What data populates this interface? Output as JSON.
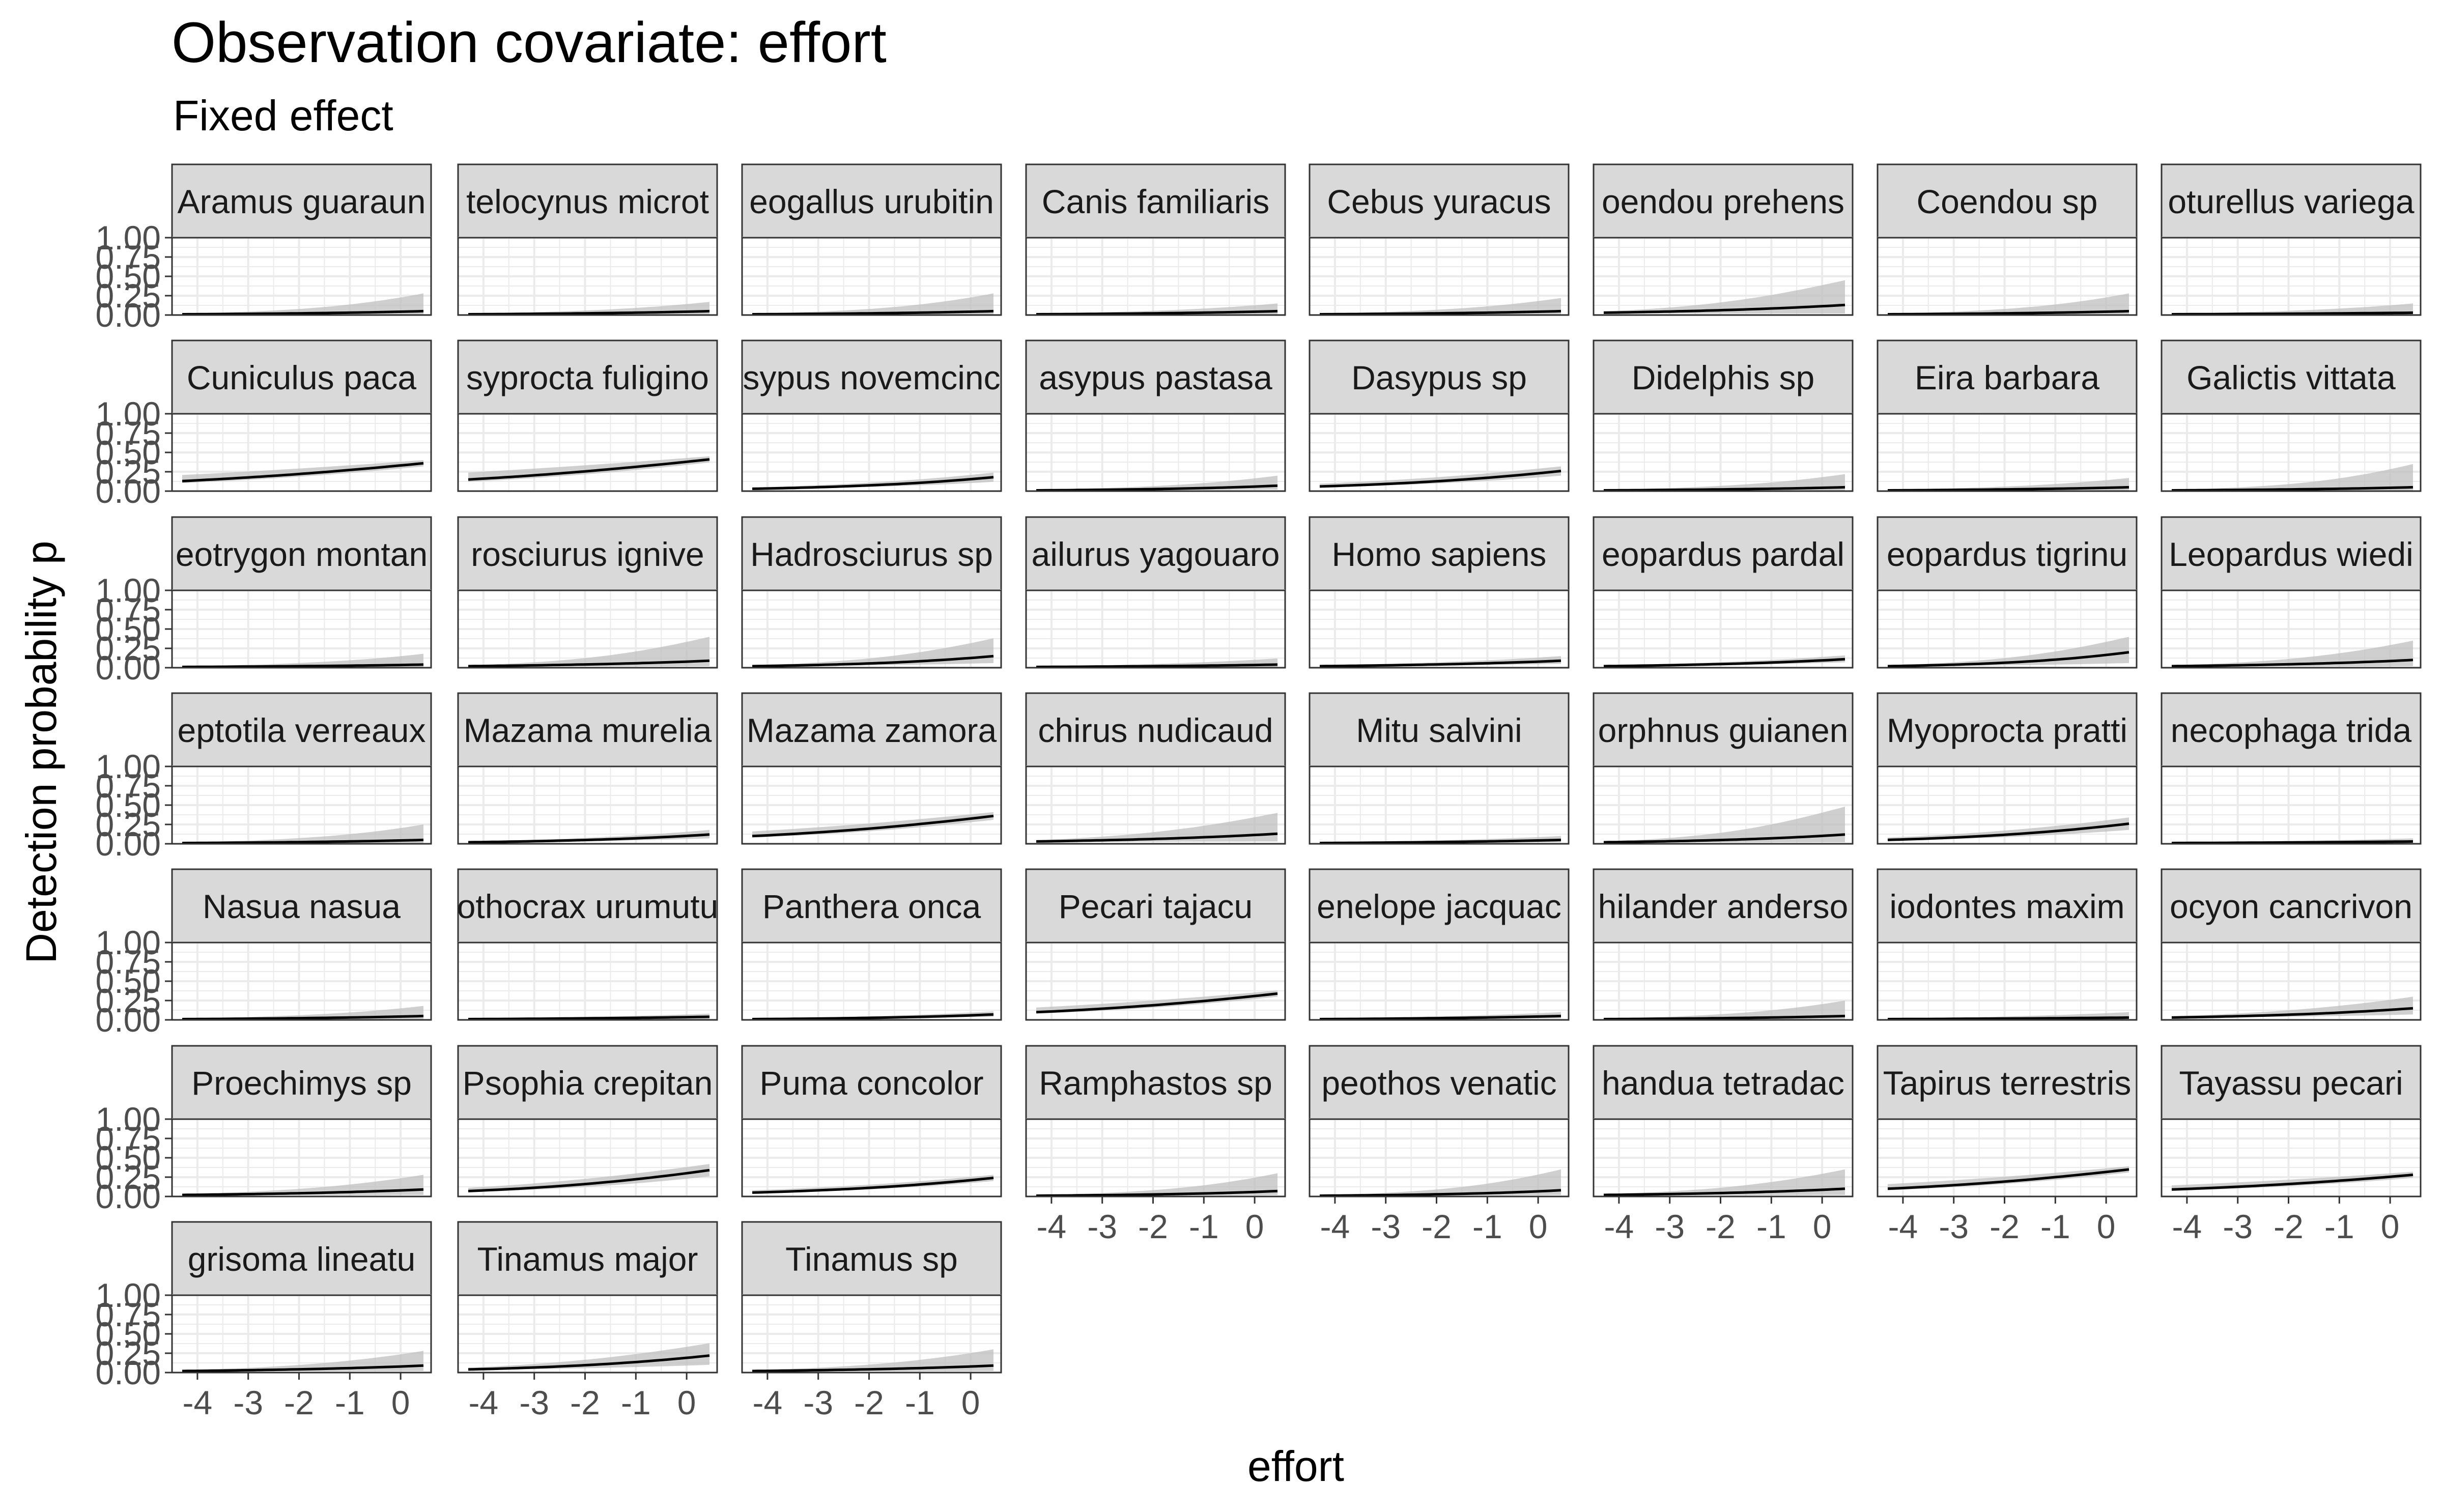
{
  "chart_data": {
    "type": "line",
    "title": "Observation covariate: effort",
    "subtitle": "Fixed effect",
    "xlabel": "effort",
    "ylabel": "Detection probability p",
    "xlim": [
      -4.5,
      0.6
    ],
    "ylim": [
      0,
      1
    ],
    "x_ticks": [
      -4,
      -3,
      -2,
      -1,
      0
    ],
    "x_tick_labels": [
      "-4",
      "-3",
      "-2",
      "-1",
      "0"
    ],
    "y_ticks": [
      0,
      0.25,
      0.5,
      0.75,
      1
    ],
    "y_tick_labels": [
      "0.00",
      "0.25",
      "0.50",
      "0.75",
      "1.00"
    ],
    "grid": true,
    "layout": "facet_wrap 8 columns",
    "x_range": [
      -4.3,
      0.45
    ],
    "colors": {
      "line": "#000000",
      "ribbon": "#bfbfbf",
      "strip_fill": "#d9d9d9",
      "grid": "#ebebeb",
      "panel_border": "#333333"
    },
    "facets": [
      {
        "label": "Aramus guaraun",
        "p_start": 0.01,
        "p_end": 0.05,
        "ci_low_end": 0.0,
        "ci_high_end": 0.28
      },
      {
        "label": "telocynus microt",
        "p_start": 0.01,
        "p_end": 0.05,
        "ci_low_end": 0.01,
        "ci_high_end": 0.17
      },
      {
        "label": "eogallus urubitin",
        "p_start": 0.01,
        "p_end": 0.05,
        "ci_low_end": 0.0,
        "ci_high_end": 0.28
      },
      {
        "label": "Canis familiaris",
        "p_start": 0.01,
        "p_end": 0.05,
        "ci_low_end": 0.01,
        "ci_high_end": 0.15
      },
      {
        "label": "Cebus yuracus",
        "p_start": 0.01,
        "p_end": 0.05,
        "ci_low_end": 0.01,
        "ci_high_end": 0.22
      },
      {
        "label": "oendou prehens",
        "p_start": 0.03,
        "p_end": 0.13,
        "ci_low_end": 0.02,
        "ci_high_end": 0.45
      },
      {
        "label": "Coendou sp",
        "p_start": 0.01,
        "p_end": 0.05,
        "ci_low_end": 0.0,
        "ci_high_end": 0.28
      },
      {
        "label": "oturellus variega",
        "p_start": 0.01,
        "p_end": 0.03,
        "ci_low_end": 0.0,
        "ci_high_end": 0.15
      },
      {
        "label": "Cuniculus paca",
        "p_start": 0.13,
        "p_end": 0.36,
        "ci_low_end": 0.32,
        "ci_high_end": 0.4
      },
      {
        "label": "syprocta fuligino",
        "p_start": 0.15,
        "p_end": 0.41,
        "ci_low_end": 0.37,
        "ci_high_end": 0.45
      },
      {
        "label": "sypus novemcinc",
        "p_start": 0.03,
        "p_end": 0.18,
        "ci_low_end": 0.12,
        "ci_high_end": 0.24
      },
      {
        "label": "asypus pastasa",
        "p_start": 0.01,
        "p_end": 0.07,
        "ci_low_end": 0.02,
        "ci_high_end": 0.2
      },
      {
        "label": "Dasypus sp",
        "p_start": 0.06,
        "p_end": 0.26,
        "ci_low_end": 0.2,
        "ci_high_end": 0.32
      },
      {
        "label": "Didelphis sp",
        "p_start": 0.01,
        "p_end": 0.05,
        "ci_low_end": 0.01,
        "ci_high_end": 0.22
      },
      {
        "label": "Eira barbara",
        "p_start": 0.01,
        "p_end": 0.05,
        "ci_low_end": 0.01,
        "ci_high_end": 0.17
      },
      {
        "label": "Galictis vittata",
        "p_start": 0.01,
        "p_end": 0.05,
        "ci_low_end": 0.0,
        "ci_high_end": 0.35
      },
      {
        "label": "eotrygon montan",
        "p_start": 0.01,
        "p_end": 0.04,
        "ci_low_end": 0.0,
        "ci_high_end": 0.18
      },
      {
        "label": "rosciurus ignive",
        "p_start": 0.02,
        "p_end": 0.09,
        "ci_low_end": 0.02,
        "ci_high_end": 0.4
      },
      {
        "label": "Hadrosciurus sp",
        "p_start": 0.02,
        "p_end": 0.15,
        "ci_low_end": 0.06,
        "ci_high_end": 0.38
      },
      {
        "label": "ailurus yagouaro",
        "p_start": 0.01,
        "p_end": 0.04,
        "ci_low_end": 0.01,
        "ci_high_end": 0.12
      },
      {
        "label": "Homo sapiens",
        "p_start": 0.02,
        "p_end": 0.09,
        "ci_low_end": 0.05,
        "ci_high_end": 0.15
      },
      {
        "label": "eopardus pardal",
        "p_start": 0.02,
        "p_end": 0.11,
        "ci_low_end": 0.07,
        "ci_high_end": 0.16
      },
      {
        "label": "eopardus tigrinu",
        "p_start": 0.02,
        "p_end": 0.2,
        "ci_low_end": 0.06,
        "ci_high_end": 0.4
      },
      {
        "label": "Leopardus wiedi",
        "p_start": 0.02,
        "p_end": 0.1,
        "ci_low_end": 0.02,
        "ci_high_end": 0.35
      },
      {
        "label": "eptotila verreaux",
        "p_start": 0.01,
        "p_end": 0.05,
        "ci_low_end": 0.0,
        "ci_high_end": 0.25
      },
      {
        "label": "Mazama murelia",
        "p_start": 0.02,
        "p_end": 0.12,
        "ci_low_end": 0.07,
        "ci_high_end": 0.18
      },
      {
        "label": "Mazama zamora",
        "p_start": 0.1,
        "p_end": 0.36,
        "ci_low_end": 0.31,
        "ci_high_end": 0.41
      },
      {
        "label": "chirus nudicaud",
        "p_start": 0.03,
        "p_end": 0.13,
        "ci_low_end": 0.03,
        "ci_high_end": 0.4
      },
      {
        "label": "Mitu salvini",
        "p_start": 0.01,
        "p_end": 0.05,
        "ci_low_end": 0.02,
        "ci_high_end": 0.1
      },
      {
        "label": "orphnus guianen",
        "p_start": 0.02,
        "p_end": 0.12,
        "ci_low_end": 0.02,
        "ci_high_end": 0.48
      },
      {
        "label": "Myoprocta pratti",
        "p_start": 0.05,
        "p_end": 0.26,
        "ci_low_end": 0.18,
        "ci_high_end": 0.34
      },
      {
        "label": "necophaga trida",
        "p_start": 0.01,
        "p_end": 0.03,
        "ci_low_end": 0.0,
        "ci_high_end": 0.07
      },
      {
        "label": "Nasua nasua",
        "p_start": 0.01,
        "p_end": 0.05,
        "ci_low_end": 0.0,
        "ci_high_end": 0.18
      },
      {
        "label": "othocrax urumutu",
        "p_start": 0.01,
        "p_end": 0.04,
        "ci_low_end": 0.01,
        "ci_high_end": 0.08
      },
      {
        "label": "Panthera onca",
        "p_start": 0.01,
        "p_end": 0.07,
        "ci_low_end": 0.04,
        "ci_high_end": 0.11
      },
      {
        "label": "Pecari tajacu",
        "p_start": 0.1,
        "p_end": 0.34,
        "ci_low_end": 0.3,
        "ci_high_end": 0.38
      },
      {
        "label": "enelope jacquac",
        "p_start": 0.01,
        "p_end": 0.05,
        "ci_low_end": 0.02,
        "ci_high_end": 0.1
      },
      {
        "label": "hilander anderso",
        "p_start": 0.01,
        "p_end": 0.05,
        "ci_low_end": 0.0,
        "ci_high_end": 0.25
      },
      {
        "label": "iodontes maxim",
        "p_start": 0.01,
        "p_end": 0.03,
        "ci_low_end": 0.0,
        "ci_high_end": 0.1
      },
      {
        "label": "ocyon cancrivon",
        "p_start": 0.03,
        "p_end": 0.15,
        "ci_low_end": 0.07,
        "ci_high_end": 0.3
      },
      {
        "label": "Proechimys sp",
        "p_start": 0.02,
        "p_end": 0.09,
        "ci_low_end": 0.02,
        "ci_high_end": 0.28
      },
      {
        "label": "Psophia crepitan",
        "p_start": 0.07,
        "p_end": 0.34,
        "ci_low_end": 0.26,
        "ci_high_end": 0.42
      },
      {
        "label": "Puma concolor",
        "p_start": 0.05,
        "p_end": 0.24,
        "ci_low_end": 0.2,
        "ci_high_end": 0.28
      },
      {
        "label": "Ramphastos sp",
        "p_start": 0.01,
        "p_end": 0.07,
        "ci_low_end": 0.02,
        "ci_high_end": 0.3
      },
      {
        "label": "peothos venatic",
        "p_start": 0.01,
        "p_end": 0.08,
        "ci_low_end": 0.02,
        "ci_high_end": 0.35
      },
      {
        "label": "handua tetradac",
        "p_start": 0.02,
        "p_end": 0.1,
        "ci_low_end": 0.02,
        "ci_high_end": 0.35
      },
      {
        "label": "Tapirus terrestris",
        "p_start": 0.1,
        "p_end": 0.35,
        "ci_low_end": 0.31,
        "ci_high_end": 0.39
      },
      {
        "label": "Tayassu pecari",
        "p_start": 0.09,
        "p_end": 0.28,
        "ci_low_end": 0.24,
        "ci_high_end": 0.32
      },
      {
        "label": "grisoma lineatu",
        "p_start": 0.02,
        "p_end": 0.09,
        "ci_low_end": 0.02,
        "ci_high_end": 0.28
      },
      {
        "label": "Tinamus major",
        "p_start": 0.04,
        "p_end": 0.22,
        "ci_low_end": 0.1,
        "ci_high_end": 0.38
      },
      {
        "label": "Tinamus sp",
        "p_start": 0.02,
        "p_end": 0.09,
        "ci_low_end": 0.02,
        "ci_high_end": 0.3
      }
    ]
  }
}
